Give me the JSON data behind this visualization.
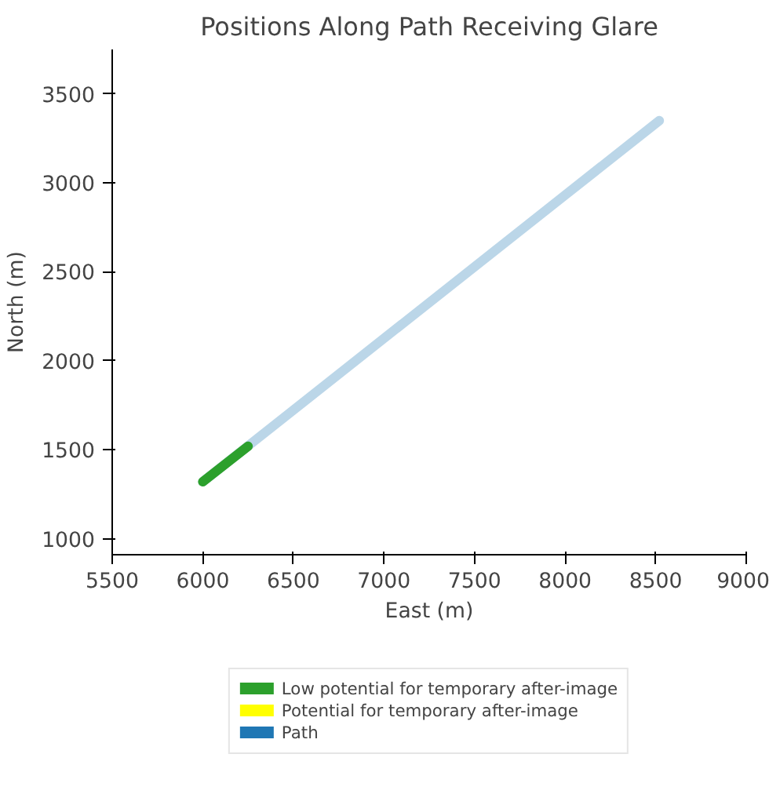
{
  "chart_data": {
    "type": "line",
    "title": "Positions Along Path Receiving Glare",
    "xlabel": "East (m)",
    "ylabel": "North (m)",
    "xlim": [
      5500,
      9000
    ],
    "xticks": [
      5500,
      6000,
      6500,
      7000,
      7500,
      8000,
      8500,
      9000
    ],
    "ylim": [
      910,
      3750
    ],
    "yticks": [
      1000,
      1500,
      2000,
      2500,
      3000,
      3500
    ],
    "grid": false,
    "legend": "bottom",
    "series": [
      {
        "name": "Low potential for temporary after-image",
        "color": "#2ca02c",
        "x": [
          6000,
          6250
        ],
        "values": [
          1320,
          1520
        ]
      },
      {
        "name": "Potential for temporary after-image",
        "color": "#ffff00"
      },
      {
        "name": "Path",
        "color": "#1f77b4",
        "x": [
          6000,
          8520
        ],
        "values": [
          1320,
          3350
        ]
      }
    ]
  }
}
